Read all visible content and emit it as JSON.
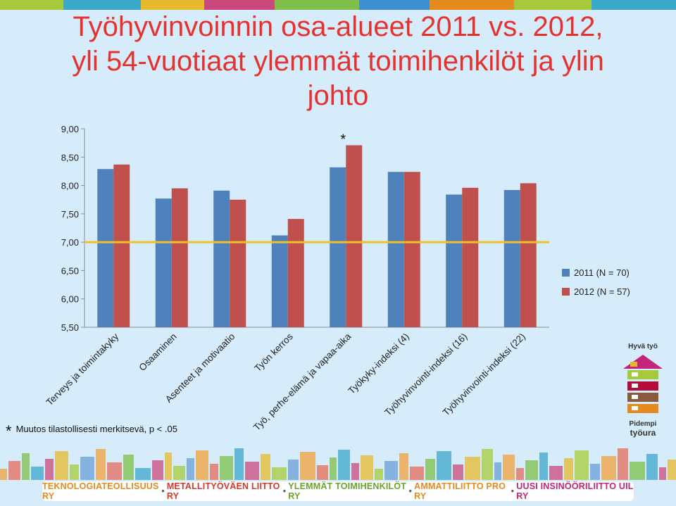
{
  "chart_data": {
    "type": "bar",
    "title": "Työhyvinvoinnin osa-alueet 2011 vs. 2012, yli 54-vuotiaat ylemmät toimihenkilöt ja ylin johto",
    "categories": [
      "Terveys ja toimintakyky",
      "Osaaminen",
      "Asenteet ja motivaatio",
      "Työn kerros",
      "Työ, perhe-elämä ja vapaa-aika",
      "Työkyky-indeksi (4)",
      "Työhyvinvointi-indeksi (16)",
      "Työhyvinvointi-indeksi (22)"
    ],
    "series": [
      {
        "name": "2011 (N = 70)",
        "color": "#4f81bd",
        "values": [
          8.29,
          7.77,
          7.91,
          7.12,
          8.32,
          8.24,
          7.84,
          7.92
        ]
      },
      {
        "name": "2012 (N = 57)",
        "color": "#c0504d",
        "values": [
          8.37,
          7.95,
          7.75,
          7.41,
          8.71,
          8.24,
          7.96,
          8.04
        ]
      }
    ],
    "yticks": [
      "9,00",
      "8,50",
      "8,00",
      "7,50",
      "7,00",
      "6,50",
      "6,00",
      "5,50"
    ],
    "ylim": [
      5.5,
      9.0
    ],
    "reference_line": {
      "value": 7.0,
      "color": "#f0c02c"
    },
    "significance_marker": {
      "category_index": 4,
      "text": "*"
    },
    "legend_position": "right"
  },
  "footnote": {
    "star": "*",
    "text": "Muutos tilastollisesti merkitsevä, p < .05"
  },
  "logo": {
    "top": "Hyvä työ",
    "bottom1": "Pidempi",
    "bottom2": "työura"
  },
  "footer_items": [
    {
      "text": "TEKNOLOGIATEOLLISUUS RY",
      "color": "#e58a1e"
    },
    {
      "text": "METALLITYÖVÄEN LIITTO RY",
      "color": "#d33a2c"
    },
    {
      "text": "YLEMMÄT TOIMIHENKILÖT RY",
      "color": "#6aa42c"
    },
    {
      "text": "AMMATTILIITTO PRO RY",
      "color": "#e58a1e"
    },
    {
      "text": "UUSI INSINÖÖRILIITTO UIL RY",
      "color": "#c2267a"
    }
  ],
  "footer_separator": "•"
}
